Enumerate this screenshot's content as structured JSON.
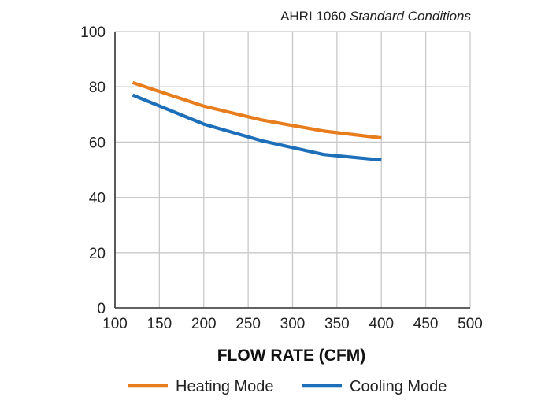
{
  "chart_data": {
    "type": "line",
    "subtitle_prefix": "AHRI 1060 ",
    "subtitle_italic": "Standard Conditions",
    "xlabel": "FLOW RATE (CFM)",
    "ylabel": "",
    "xlim": [
      100,
      500
    ],
    "ylim": [
      0,
      100
    ],
    "xticks": [
      "100",
      "150",
      "200",
      "250",
      "300",
      "350",
      "400",
      "450",
      "500"
    ],
    "yticks": [
      "0",
      "20",
      "40",
      "60",
      "80",
      "100"
    ],
    "grid": true,
    "legend_position": "bottom",
    "series": [
      {
        "name": "Heating Mode",
        "color": "#e87d1e",
        "x": [
          120,
          200,
          265,
          335,
          400
        ],
        "y": [
          81.5,
          73,
          68,
          64,
          61.5
        ]
      },
      {
        "name": "Cooling Mode",
        "color": "#1c6fb8",
        "x": [
          120,
          200,
          265,
          335,
          400
        ],
        "y": [
          77,
          66.5,
          60.5,
          55.5,
          53.5
        ]
      }
    ]
  }
}
